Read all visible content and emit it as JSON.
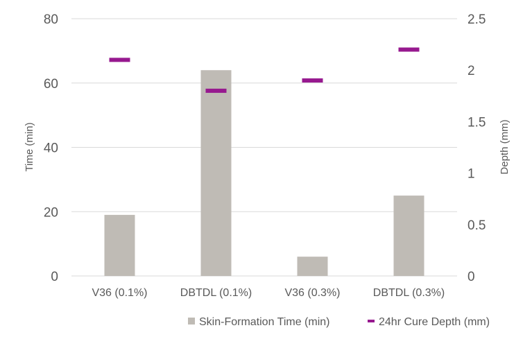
{
  "chart_data": {
    "type": "bar",
    "categories": [
      "V36 (0.1%)",
      "DBTDL (0.1%)",
      "V36 (0.3%)",
      "DBTDL (0.3%)"
    ],
    "series": [
      {
        "name": "Skin-Formation Time (min)",
        "axis": "left",
        "mark": "bar",
        "values": [
          19,
          64,
          6,
          25
        ]
      },
      {
        "name": "24hr Cure Depth (mm)",
        "axis": "right",
        "mark": "dash",
        "values": [
          2.1,
          1.8,
          1.9,
          2.2
        ]
      }
    ],
    "y_left": {
      "label": "Time (min)",
      "lim": [
        0,
        80
      ],
      "ticks": [
        0,
        20,
        40,
        60,
        80
      ]
    },
    "y_right": {
      "label": "Depth (mm)",
      "lim": [
        0,
        2.5
      ],
      "ticks": [
        0,
        0.5,
        1,
        1.5,
        2,
        2.5
      ]
    },
    "xlabel": "",
    "grid": true,
    "legend": "bottom",
    "colors": {
      "bar": "#bfbbb5",
      "dash": "#97198f",
      "grid": "#d9d9d9",
      "text": "#595959"
    }
  }
}
